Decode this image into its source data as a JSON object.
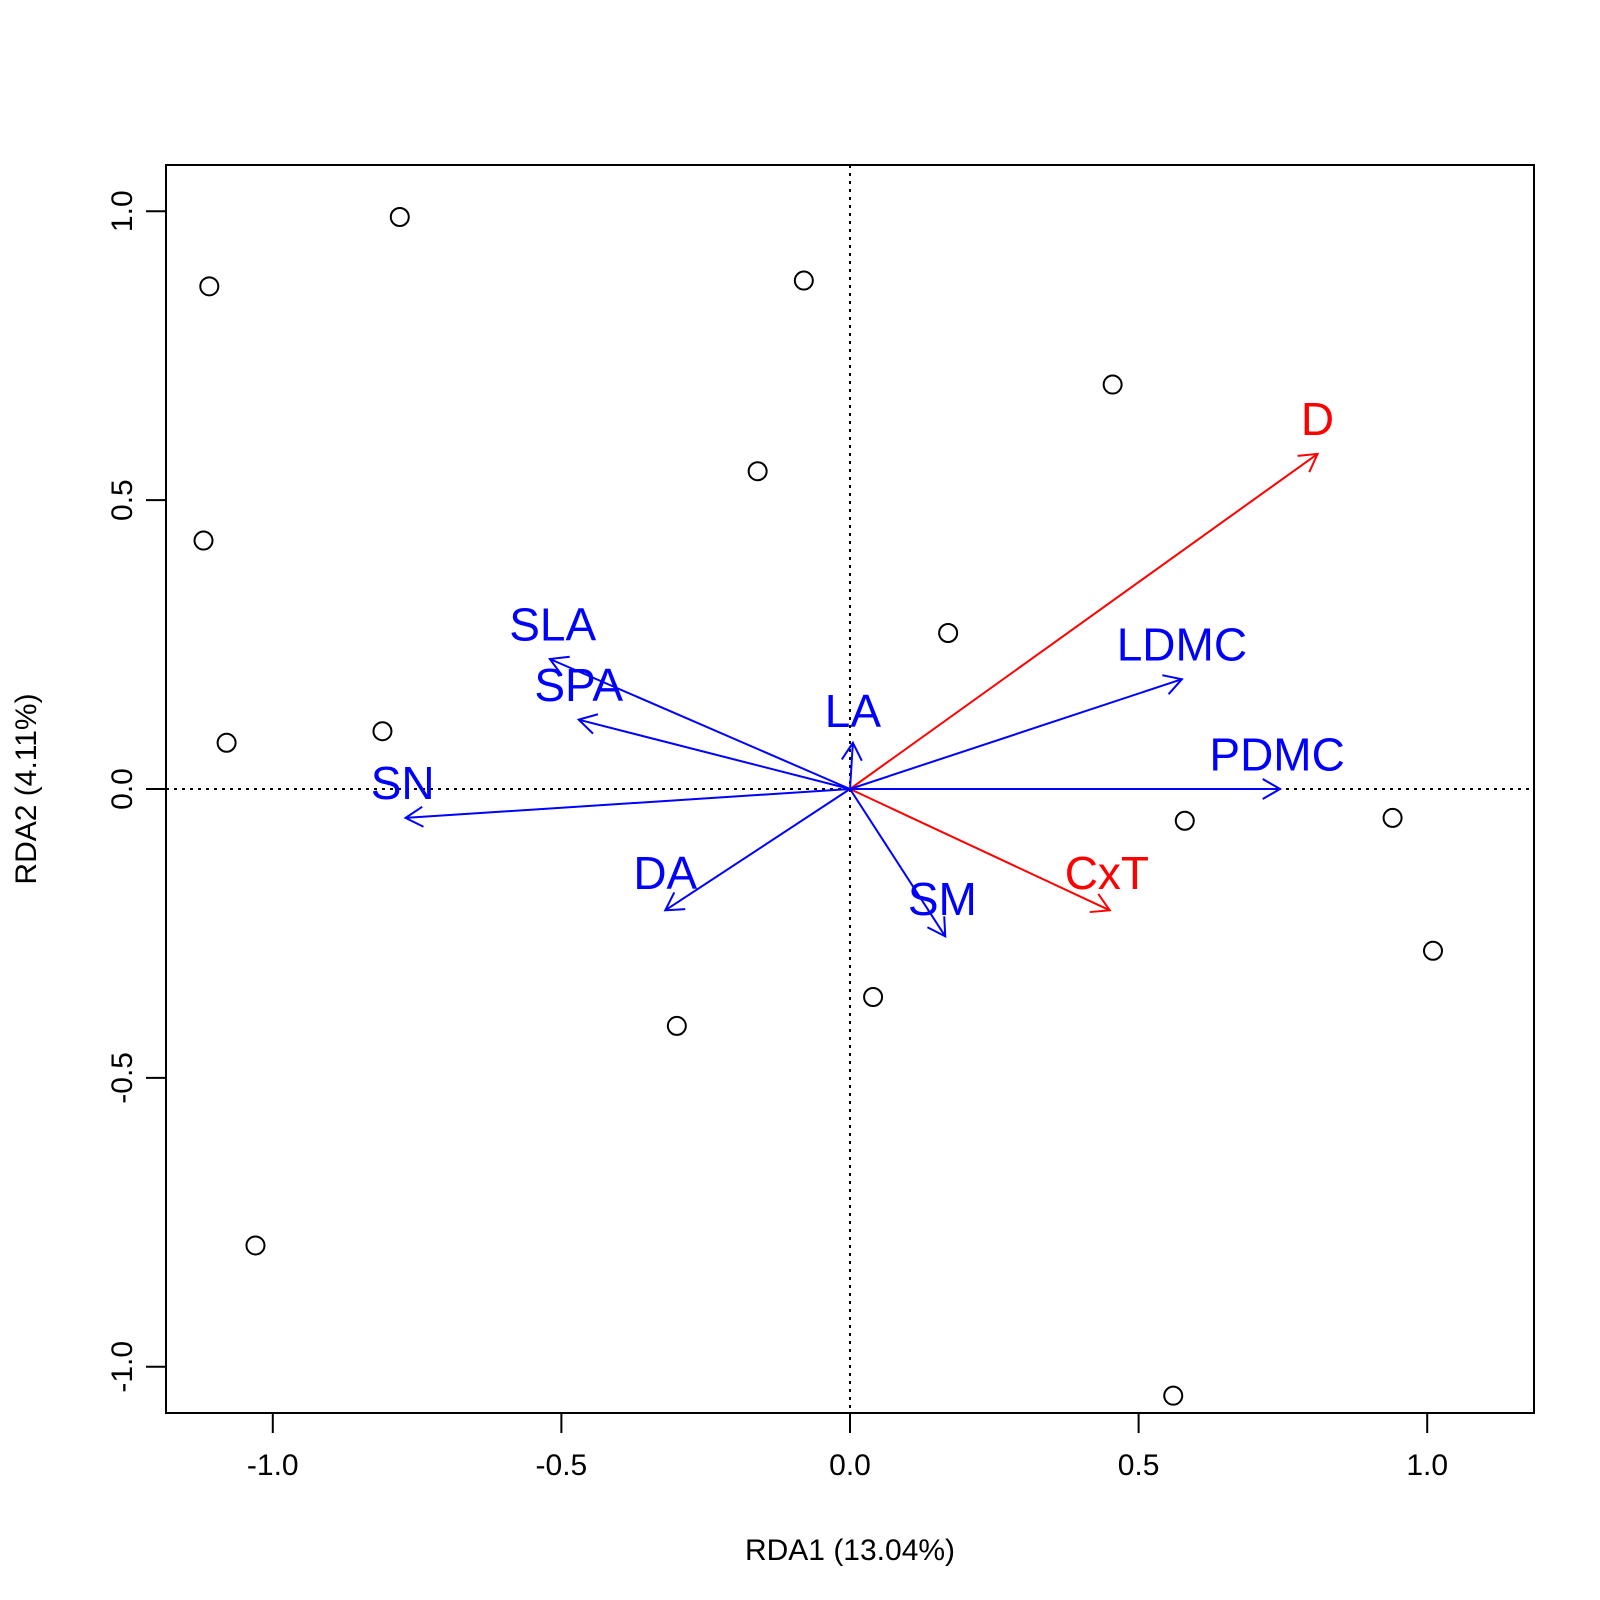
{
  "chart_data": {
    "type": "scatter",
    "title": "",
    "xlabel": "RDA1 (13.04%)",
    "ylabel": "RDA2 (4.11%)",
    "xlim": [
      -1.185,
      1.185
    ],
    "ylim": [
      -1.08,
      1.08
    ],
    "xticks": [
      -1.0,
      -0.5,
      0.0,
      0.5,
      1.0
    ],
    "yticks": [
      -1.0,
      -0.5,
      0.0,
      0.5,
      1.0
    ],
    "xtick_labels": [
      "-1.0",
      "-0.5",
      "0.0",
      "0.5",
      "1.0"
    ],
    "ytick_labels": [
      "-1.0",
      "-0.5",
      "0.0",
      "0.5",
      "1.0"
    ],
    "grid": false,
    "reference_lines": {
      "x": 0,
      "y": 0,
      "style": "dotted"
    },
    "points": [
      {
        "x": -0.78,
        "y": 0.99
      },
      {
        "x": -1.11,
        "y": 0.87
      },
      {
        "x": -0.08,
        "y": 0.88
      },
      {
        "x": 0.455,
        "y": 0.7
      },
      {
        "x": -0.16,
        "y": 0.55
      },
      {
        "x": -1.12,
        "y": 0.43
      },
      {
        "x": 0.17,
        "y": 0.27
      },
      {
        "x": -1.08,
        "y": 0.08
      },
      {
        "x": -0.81,
        "y": 0.1
      },
      {
        "x": 0.58,
        "y": -0.055
      },
      {
        "x": 0.94,
        "y": -0.05
      },
      {
        "x": 1.01,
        "y": -0.28
      },
      {
        "x": 0.04,
        "y": -0.36
      },
      {
        "x": -0.3,
        "y": -0.41
      },
      {
        "x": -1.03,
        "y": -0.79
      },
      {
        "x": 0.56,
        "y": -1.05
      }
    ],
    "arrows": [
      {
        "label": "D",
        "x": 0.81,
        "y": 0.58,
        "color": "#ff0000",
        "label_x": 0.81,
        "label_y": 0.64
      },
      {
        "label": "CxT",
        "x": 0.45,
        "y": -0.21,
        "color": "#ff0000",
        "label_x": 0.445,
        "label_y": -0.145
      },
      {
        "label": "LDMC",
        "x": 0.575,
        "y": 0.19,
        "color": "#0000ff",
        "label_x": 0.575,
        "label_y": 0.25
      },
      {
        "label": "PDMC",
        "x": 0.745,
        "y": 0.0,
        "color": "#0000ff",
        "label_x": 0.74,
        "label_y": 0.06
      },
      {
        "label": "LA",
        "x": 0.005,
        "y": 0.08,
        "color": "#0000ff",
        "label_x": 0.005,
        "label_y": 0.135
      },
      {
        "label": "SLA",
        "x": -0.52,
        "y": 0.225,
        "color": "#0000ff",
        "label_x": -0.515,
        "label_y": 0.285
      },
      {
        "label": "SPA",
        "x": -0.47,
        "y": 0.12,
        "color": "#0000ff",
        "label_x": -0.47,
        "label_y": 0.18
      },
      {
        "label": "SN",
        "x": -0.77,
        "y": -0.05,
        "color": "#0000ff",
        "label_x": -0.775,
        "label_y": 0.01
      },
      {
        "label": "DA",
        "x": -0.32,
        "y": -0.21,
        "color": "#0000ff",
        "label_x": -0.32,
        "label_y": -0.145
      },
      {
        "label": "SM",
        "x": 0.165,
        "y": -0.255,
        "color": "#0000ff",
        "label_x": 0.16,
        "label_y": -0.19
      }
    ]
  }
}
